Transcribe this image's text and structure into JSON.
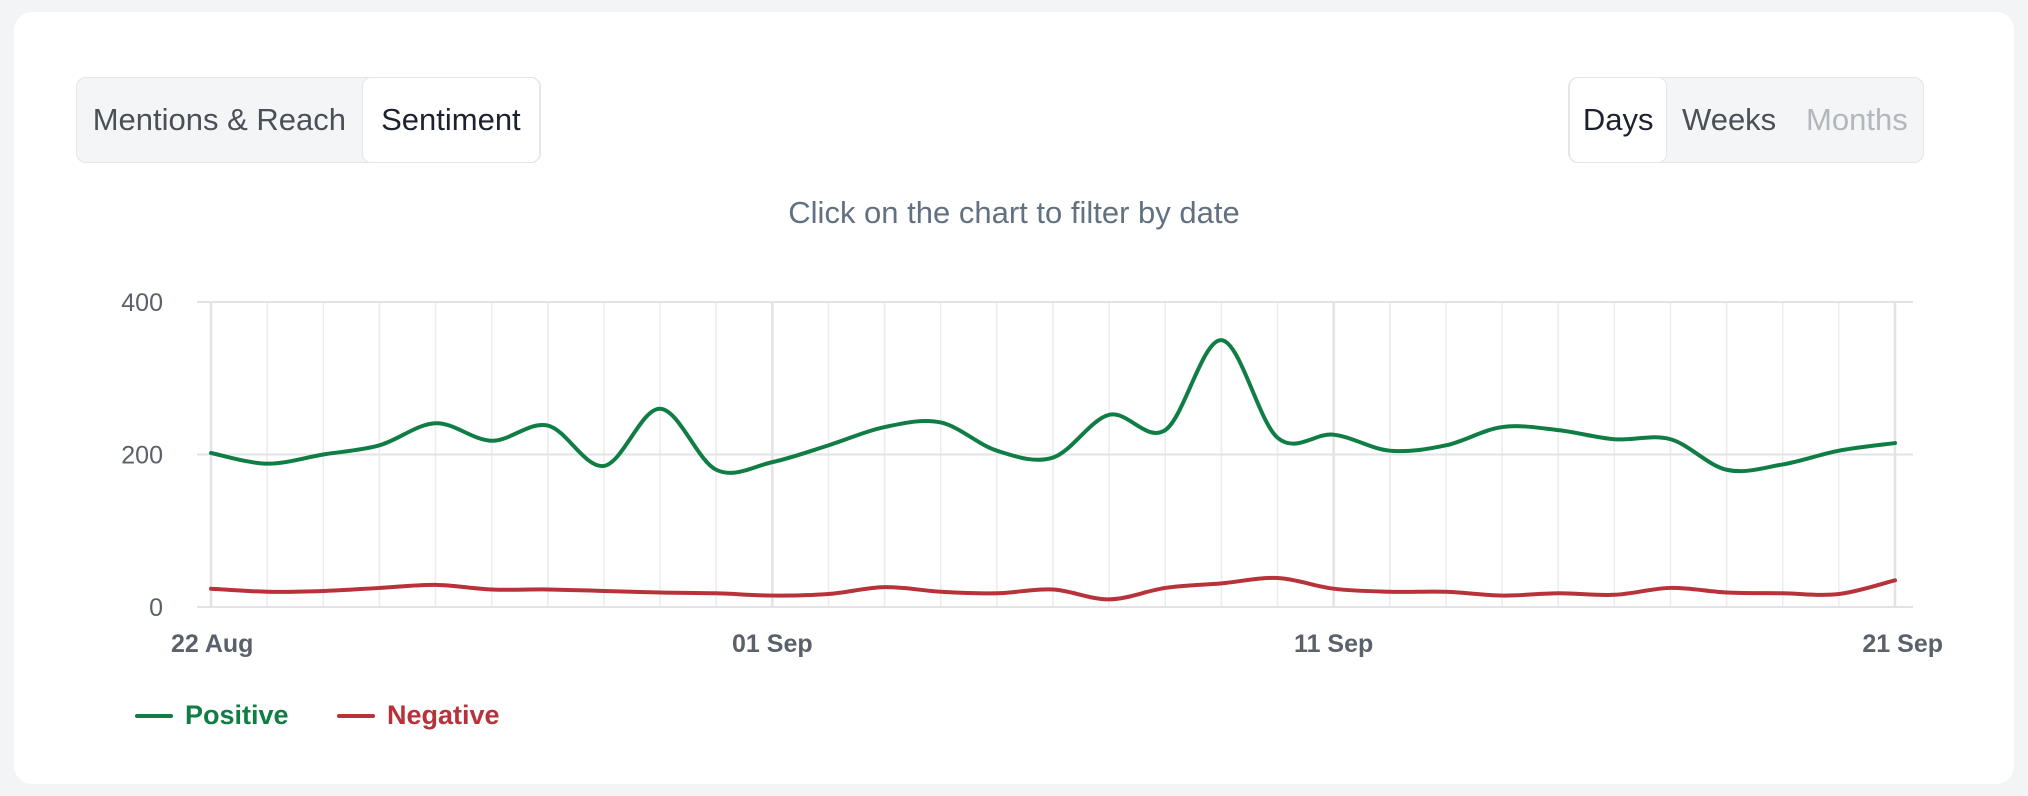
{
  "tabs": [
    {
      "label": "Mentions & Reach",
      "active": false
    },
    {
      "label": "Sentiment",
      "active": true
    }
  ],
  "periods": [
    {
      "label": "Days",
      "active": true,
      "disabled": false
    },
    {
      "label": "Weeks",
      "active": false,
      "disabled": false
    },
    {
      "label": "Months",
      "active": false,
      "disabled": true
    }
  ],
  "subtitle": "Click on the chart to filter by date",
  "legend": [
    {
      "label": "Positive",
      "color": "#0f7d44"
    },
    {
      "label": "Negative",
      "color": "#b8323a"
    }
  ],
  "chart_data": {
    "type": "line",
    "x": [
      "22 Aug",
      "23 Aug",
      "24 Aug",
      "25 Aug",
      "26 Aug",
      "27 Aug",
      "28 Aug",
      "29 Aug",
      "30 Aug",
      "31 Aug",
      "01 Sep",
      "02 Sep",
      "03 Sep",
      "04 Sep",
      "05 Sep",
      "06 Sep",
      "07 Sep",
      "08 Sep",
      "09 Sep",
      "10 Sep",
      "11 Sep",
      "12 Sep",
      "13 Sep",
      "14 Sep",
      "15 Sep",
      "16 Sep",
      "17 Sep",
      "18 Sep",
      "19 Sep",
      "20 Sep",
      "21 Sep"
    ],
    "x_tick_labels": [
      "22 Aug",
      "01 Sep",
      "11 Sep",
      "21 Sep"
    ],
    "series": [
      {
        "name": "Positive",
        "color": "#0f7d44",
        "values": [
          202,
          188,
          200,
          212,
          241,
          218,
          238,
          185,
          260,
          180,
          190,
          212,
          236,
          242,
          205,
          196,
          252,
          232,
          350,
          222,
          226,
          205,
          212,
          236,
          232,
          220,
          220,
          180,
          187,
          205,
          215
        ]
      },
      {
        "name": "Negative",
        "color": "#b8323a",
        "values": [
          24,
          20,
          21,
          25,
          29,
          23,
          23,
          21,
          19,
          18,
          15,
          17,
          26,
          20,
          18,
          23,
          10,
          25,
          31,
          38,
          24,
          20,
          20,
          15,
          18,
          16,
          25,
          19,
          18,
          17,
          35
        ]
      }
    ],
    "ylim": [
      0,
      400
    ],
    "yticks": [
      0,
      200,
      400
    ],
    "grid": true
  }
}
